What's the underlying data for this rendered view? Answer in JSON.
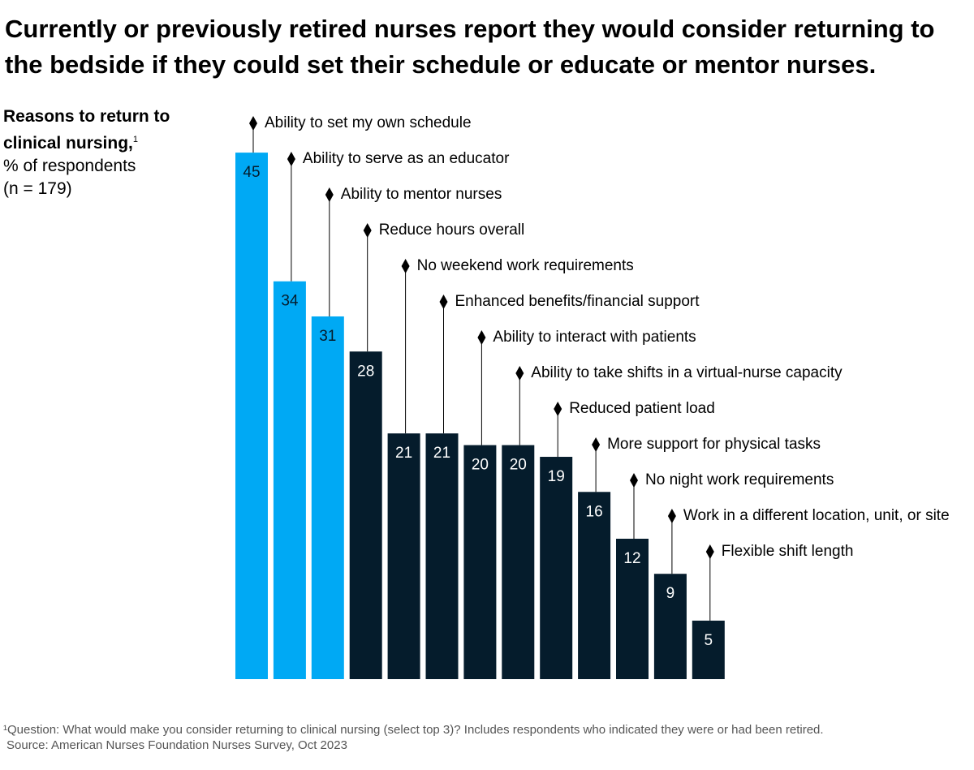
{
  "chart_data": {
    "type": "bar",
    "title": "Currently or previously retired nurses report they would consider returning to the bedside if they could set their schedule or educate or mentor nurses.",
    "subtitle": "Reasons to return to clinical nursing,",
    "subtitle_note": "1",
    "unit": "% of respondents",
    "sample": "(n = 179)",
    "categories": [
      "Ability to set my own schedule",
      "Ability to serve as an educator",
      "Ability to mentor nurses",
      "Reduce hours overall",
      "No weekend work requirements",
      "Enhanced benefits/financial support",
      "Ability to interact with patients",
      "Ability to take shifts in a virtual-nurse capacity",
      "Reduced patient load",
      "More support for physical tasks",
      "No night work requirements",
      "Work in a different location, unit, or site",
      "Flexible shift length"
    ],
    "values": [
      45,
      34,
      31,
      28,
      21,
      21,
      20,
      20,
      19,
      16,
      12,
      9,
      5
    ],
    "colors": [
      "#00a9f4",
      "#00a9f4",
      "#00a9f4",
      "#051c2c",
      "#051c2c",
      "#051c2c",
      "#051c2c",
      "#051c2c",
      "#051c2c",
      "#051c2c",
      "#051c2c",
      "#051c2c",
      "#051c2c"
    ],
    "footnotes": [
      "¹Question: What would make you consider returning to clinical nursing (select top 3)? Includes respondents who indicated they were or had been retired.",
      "Source: American Nurses Foundation Nurses Survey, Oct 2023"
    ]
  }
}
